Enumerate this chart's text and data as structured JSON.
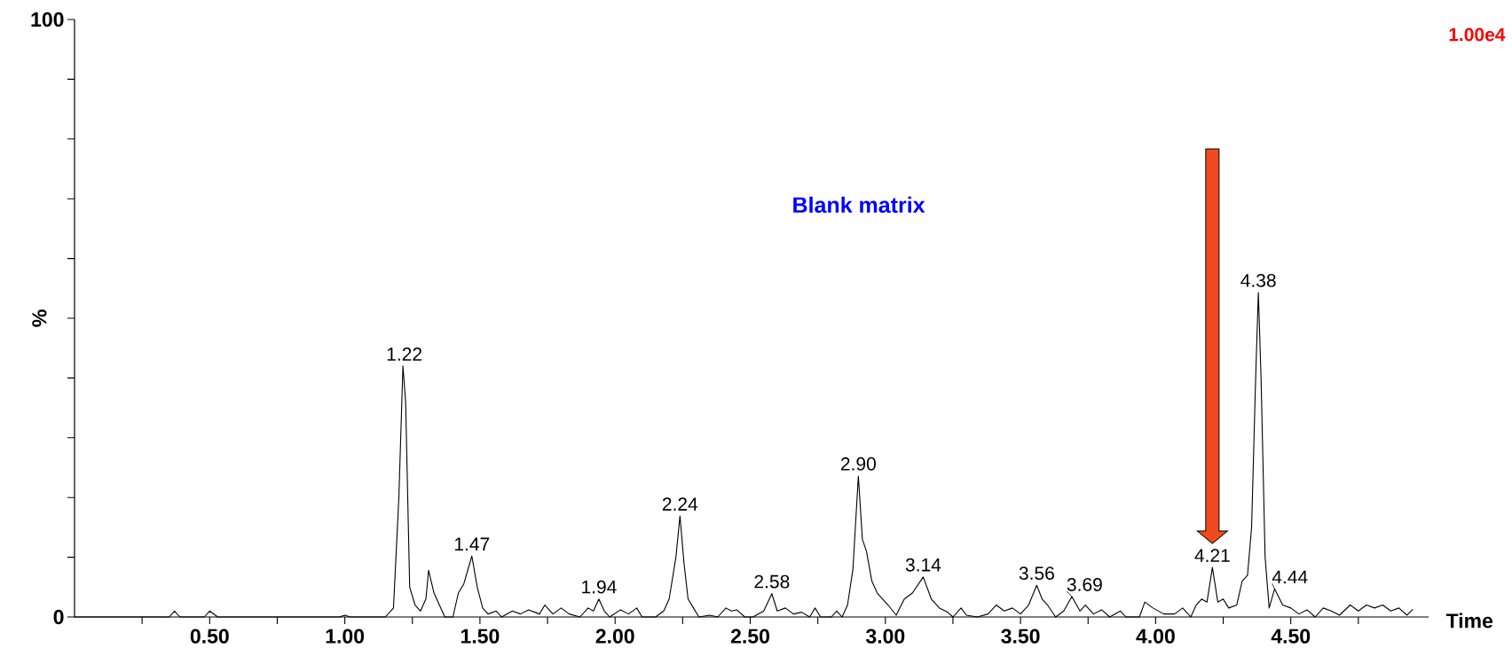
{
  "chart_data": {
    "type": "line",
    "title": "Blank matrix",
    "xlabel": "Time",
    "ylabel": "%",
    "xlim": [
      0,
      5.01
    ],
    "ylim": [
      0,
      100
    ],
    "xticks": [
      {
        "value": 0.25,
        "label": null
      },
      {
        "value": 0.5,
        "label": "0.50"
      },
      {
        "value": 0.75,
        "label": null
      },
      {
        "value": 1.0,
        "label": "1.00"
      },
      {
        "value": 1.25,
        "label": null
      },
      {
        "value": 1.5,
        "label": "1.50"
      },
      {
        "value": 1.75,
        "label": null
      },
      {
        "value": 2.0,
        "label": "2.00"
      },
      {
        "value": 2.25,
        "label": null
      },
      {
        "value": 2.5,
        "label": "2.50"
      },
      {
        "value": 2.75,
        "label": null
      },
      {
        "value": 3.0,
        "label": "3.00"
      },
      {
        "value": 3.25,
        "label": null
      },
      {
        "value": 3.5,
        "label": "3.50"
      },
      {
        "value": 3.75,
        "label": null
      },
      {
        "value": 4.0,
        "label": "4.00"
      },
      {
        "value": 4.25,
        "label": null
      },
      {
        "value": 4.5,
        "label": "4.50"
      },
      {
        "value": 4.75,
        "label": null
      }
    ],
    "yticks": [
      0,
      {
        "value": 10,
        "label": null
      },
      {
        "value": 20,
        "label": null
      },
      {
        "value": 30,
        "label": null
      },
      {
        "value": 40,
        "label": null
      },
      {
        "value": 50,
        "label": null
      },
      {
        "value": 60,
        "label": null
      },
      {
        "value": 70,
        "label": null
      },
      {
        "value": 80,
        "label": null
      },
      {
        "value": 90,
        "label": null
      },
      100
    ],
    "x": [
      0,
      0.35,
      0.37,
      0.39,
      0.48,
      0.5,
      0.53,
      0.98,
      1.0,
      1.02,
      1.15,
      1.18,
      1.2,
      1.215,
      1.225,
      1.24,
      1.26,
      1.28,
      1.3,
      1.31,
      1.33,
      1.35,
      1.37,
      1.4,
      1.42,
      1.44,
      1.47,
      1.49,
      1.51,
      1.53,
      1.56,
      1.58,
      1.62,
      1.65,
      1.68,
      1.72,
      1.74,
      1.77,
      1.8,
      1.83,
      1.87,
      1.9,
      1.92,
      1.94,
      1.96,
      1.98,
      2.02,
      2.05,
      2.08,
      2.1,
      2.15,
      2.18,
      2.2,
      2.225,
      2.24,
      2.255,
      2.27,
      2.29,
      2.31,
      2.35,
      2.38,
      2.41,
      2.43,
      2.45,
      2.48,
      2.51,
      2.55,
      2.58,
      2.6,
      2.63,
      2.66,
      2.69,
      2.72,
      2.74,
      2.76,
      2.8,
      2.82,
      2.84,
      2.86,
      2.88,
      2.9,
      2.915,
      2.93,
      2.95,
      2.97,
      2.99,
      3.01,
      3.04,
      3.07,
      3.1,
      3.14,
      3.17,
      3.2,
      3.23,
      3.25,
      3.28,
      3.3,
      3.34,
      3.38,
      3.41,
      3.44,
      3.47,
      3.5,
      3.53,
      3.56,
      3.58,
      3.6,
      3.63,
      3.66,
      3.69,
      3.72,
      3.74,
      3.77,
      3.8,
      3.83,
      3.87,
      3.89,
      3.94,
      3.96,
      3.99,
      4.03,
      4.07,
      4.1,
      4.13,
      4.15,
      4.17,
      4.19,
      4.21,
      4.23,
      4.25,
      4.27,
      4.3,
      4.32,
      4.34,
      4.355,
      4.37,
      4.38,
      4.39,
      4.405,
      4.42,
      4.44,
      4.47,
      4.5,
      4.53,
      4.56,
      4.59,
      4.62,
      4.65,
      4.68,
      4.72,
      4.75,
      4.78,
      4.81,
      4.84,
      4.87,
      4.9,
      4.93,
      4.95
    ],
    "series": [
      {
        "color": "#000000",
        "values": [
          0,
          0,
          1.0,
          0,
          0,
          1.0,
          0,
          0,
          0.3,
          0,
          0,
          1.5,
          20,
          42,
          36,
          5,
          2,
          1,
          3,
          7.8,
          4,
          2,
          0,
          0,
          4,
          5.5,
          10.2,
          5,
          1.5,
          0.5,
          1,
          0,
          1,
          0.5,
          1.2,
          0.5,
          2.0,
          0.5,
          1.5,
          0.5,
          0,
          1.5,
          1,
          3.0,
          1,
          0,
          1.2,
          0.5,
          1.5,
          0,
          0,
          1.0,
          3,
          10,
          16.9,
          9,
          3,
          1.5,
          0,
          0.3,
          0,
          1.5,
          1,
          1.2,
          0,
          0,
          1.0,
          3.9,
          1.0,
          1.5,
          0.5,
          0.8,
          0,
          1.5,
          0,
          0,
          1,
          0,
          2,
          8,
          23.6,
          13,
          11,
          6,
          4,
          3,
          2,
          0.3,
          3,
          4,
          6.7,
          3,
          1.5,
          0.8,
          0,
          1.5,
          0.3,
          0,
          0.5,
          2,
          1,
          1.5,
          0.5,
          2,
          5.3,
          3,
          2,
          0,
          1,
          3.4,
          1.0,
          2.0,
          0.5,
          1.2,
          0,
          1.0,
          0,
          0,
          2.5,
          1.5,
          0.5,
          0.5,
          1.5,
          0,
          2,
          3,
          2.5,
          8.3,
          2.5,
          3,
          1.5,
          2.0,
          6,
          7,
          15,
          40,
          54.3,
          40,
          10,
          1.5,
          4.7,
          2,
          1.5,
          0.5,
          1.2,
          0,
          1.5,
          1.0,
          0.3,
          2,
          1,
          2,
          1.5,
          2,
          1,
          1.5,
          0.3,
          1.2
        ]
      }
    ],
    "annotations": [
      "1.00e4",
      {
        "text": "1.22",
        "x": 1.22,
        "y": 42
      },
      {
        "text": "1.47",
        "x": 1.47,
        "y": 10.2
      },
      {
        "text": "1.94",
        "x": 1.94,
        "y": 3.0
      },
      {
        "text": "2.24",
        "x": 2.24,
        "y": 16.9
      },
      {
        "text": "2.58",
        "x": 2.58,
        "y": 3.9
      },
      {
        "text": "2.90",
        "x": 2.9,
        "y": 23.6
      },
      {
        "text": "3.14",
        "x": 3.14,
        "y": 6.7
      },
      {
        "text": "3.56",
        "x": 3.56,
        "y": 5.3
      },
      {
        "text": "3.69",
        "x": 3.69,
        "y": 3.4
      },
      {
        "text": "4.21",
        "x": 4.21,
        "y": 8.3
      },
      {
        "text": "4.38",
        "x": 4.38,
        "y": 54.3
      },
      {
        "text": "4.44",
        "x": 4.44,
        "y": 4.7
      }
    ]
  }
}
